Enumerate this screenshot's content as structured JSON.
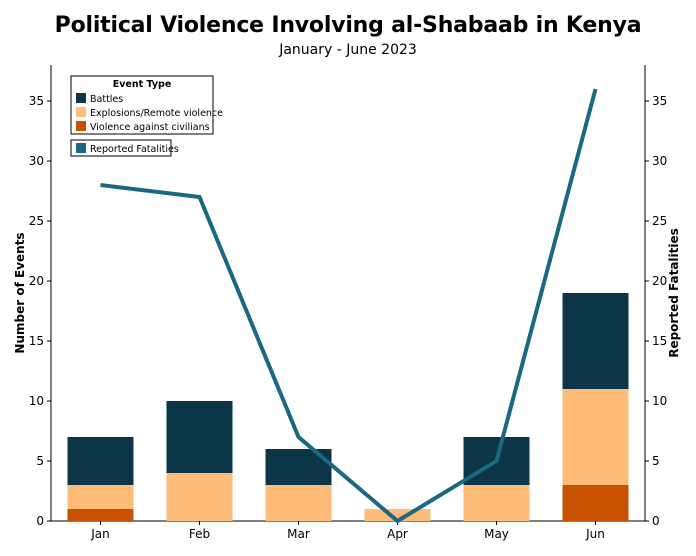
{
  "chart_data": {
    "type": "bar",
    "title": "Political Violence Involving al-Shabaab in Kenya",
    "subtitle": "January - June 2023",
    "categories": [
      "Jan",
      "Feb",
      "Mar",
      "Apr",
      "May",
      "Jun"
    ],
    "stacked": true,
    "series": [
      {
        "name": "Violence against civilians",
        "values": [
          1,
          0,
          0,
          0,
          0,
          3
        ],
        "color": "#c85200"
      },
      {
        "name": "Explosions/Remote violence",
        "values": [
          2,
          4,
          3,
          1,
          3,
          8
        ],
        "color": "#ffbc79"
      },
      {
        "name": "Battles",
        "values": [
          4,
          6,
          3,
          0,
          4,
          8
        ],
        "color": "#0c3547"
      }
    ],
    "line_series": {
      "name": "Reported Fatalities",
      "values": [
        28,
        27,
        7,
        0,
        5,
        36
      ],
      "color": "#1a6882",
      "axis": "right"
    },
    "ylabel": "Number of Events",
    "ylabel_right": "Reported Fatalities",
    "ylim": [
      0,
      38
    ],
    "ylim_right": [
      0,
      38
    ],
    "yticks": [
      0,
      5,
      10,
      15,
      20,
      25,
      30,
      35
    ],
    "legend": {
      "title": "Event Type",
      "placement": "top-left",
      "order": [
        "Battles",
        "Explosions/Remote violence",
        "Violence against civilians"
      ]
    },
    "grid": false
  }
}
